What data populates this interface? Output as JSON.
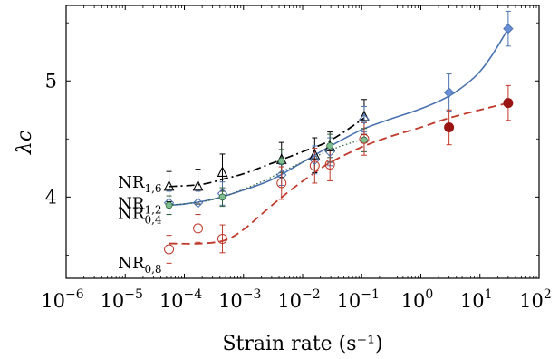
{
  "chart_data": {
    "type": "scatter",
    "xscale": "log",
    "xlim": [
      1e-06,
      100
    ],
    "ylim": [
      3.3,
      5.65
    ],
    "xlabel": "Strain rate (s⁻¹)",
    "ylabel": "λc",
    "x_ticks": [
      {
        "base": "10",
        "exp": "−6",
        "value": 1e-06
      },
      {
        "base": "10",
        "exp": "−5",
        "value": 1e-05
      },
      {
        "base": "10",
        "exp": "−4",
        "value": 0.0001
      },
      {
        "base": "10",
        "exp": "−3",
        "value": 0.001
      },
      {
        "base": "10",
        "exp": "−2",
        "value": 0.01
      },
      {
        "base": "10",
        "exp": "−1",
        "value": 0.1
      },
      {
        "base": "10",
        "exp": "0",
        "value": 1
      },
      {
        "base": "10",
        "exp": "1",
        "value": 10
      },
      {
        "base": "10",
        "exp": "2",
        "value": 100
      }
    ],
    "y_ticks": [
      {
        "label": "4",
        "value": 4
      },
      {
        "label": "5",
        "value": 5
      }
    ],
    "series": [
      {
        "name": "NR1,6",
        "label_main": "NR",
        "label_sub": "1,6",
        "color": "#000000",
        "marker": "open-triangle",
        "line_style": "dashdot",
        "points": [
          {
            "x": 5.5e-05,
            "y": 4.09,
            "err": 0.13
          },
          {
            "x": 0.00017,
            "y": 4.09,
            "err": 0.15
          },
          {
            "x": 0.00044,
            "y": 4.21,
            "err": 0.16
          },
          {
            "x": 0.0044,
            "y": 4.32,
            "err": 0.15
          },
          {
            "x": 0.016,
            "y": 4.36,
            "err": 0.15
          },
          {
            "x": 0.029,
            "y": 4.43,
            "err": 0.13
          },
          {
            "x": 0.11,
            "y": 4.69,
            "err": 0.15
          }
        ],
        "fit": [
          {
            "x": 5.5e-05,
            "y": 4.09
          },
          {
            "x": 0.0002,
            "y": 4.11
          },
          {
            "x": 0.0005,
            "y": 4.16
          },
          {
            "x": 0.001,
            "y": 4.2
          },
          {
            "x": 0.003,
            "y": 4.29
          },
          {
            "x": 0.01,
            "y": 4.39
          },
          {
            "x": 0.03,
            "y": 4.49
          },
          {
            "x": 0.11,
            "y": 4.68
          }
        ]
      },
      {
        "name": "NR1,2",
        "label_main": "NR",
        "label_sub": "1,2",
        "color": "#4a72b0",
        "fill": "#6b8fd6",
        "marker": "diamond",
        "line_style": "solid",
        "points": [
          {
            "x": 5.5e-05,
            "y": 3.95,
            "err": 0.1
          },
          {
            "x": 0.00017,
            "y": 3.95,
            "err": 0.1
          },
          {
            "x": 0.00044,
            "y": 4.03,
            "err": 0.1
          },
          {
            "x": 0.0044,
            "y": 4.19,
            "err": 0.09
          },
          {
            "x": 0.016,
            "y": 4.32,
            "err": 0.12
          },
          {
            "x": 0.029,
            "y": 4.39,
            "err": 0.12
          },
          {
            "x": 0.11,
            "y": 4.67,
            "err": 0.11
          },
          {
            "x": 3,
            "y": 4.9,
            "err": 0.16
          },
          {
            "x": 30,
            "y": 5.45,
            "err": 0.15
          }
        ],
        "fit": [
          {
            "x": 5.5e-05,
            "y": 3.93
          },
          {
            "x": 0.0001,
            "y": 3.94
          },
          {
            "x": 0.0003,
            "y": 3.98
          },
          {
            "x": 0.001,
            "y": 4.06
          },
          {
            "x": 0.003,
            "y": 4.15
          },
          {
            "x": 0.01,
            "y": 4.3
          },
          {
            "x": 0.03,
            "y": 4.44
          },
          {
            "x": 0.1,
            "y": 4.58
          },
          {
            "x": 0.3,
            "y": 4.67
          },
          {
            "x": 1,
            "y": 4.76
          },
          {
            "x": 3,
            "y": 4.87
          },
          {
            "x": 8,
            "y": 5.03
          },
          {
            "x": 15,
            "y": 5.2
          },
          {
            "x": 30,
            "y": 5.45
          }
        ]
      },
      {
        "name": "NR0,4",
        "label_main": "NR",
        "label_sub": "0,4",
        "color": "#2e5f3e",
        "fill": "#7fbf8f",
        "marker": "filled-circle",
        "line_style": "dotted",
        "points": [
          {
            "x": 5.5e-05,
            "y": 3.93,
            "err": 0.08
          },
          {
            "x": 0.00044,
            "y": 4.0,
            "err": 0.08
          },
          {
            "x": 0.0044,
            "y": 4.31,
            "err": 0.1
          },
          {
            "x": 0.029,
            "y": 4.44,
            "err": 0.1
          },
          {
            "x": 0.11,
            "y": 4.49,
            "err": 0.1
          }
        ],
        "fit": [
          {
            "x": 5.5e-05,
            "y": 3.93
          },
          {
            "x": 0.0002,
            "y": 3.96
          },
          {
            "x": 0.0005,
            "y": 4.01
          },
          {
            "x": 0.002,
            "y": 4.13
          },
          {
            "x": 0.005,
            "y": 4.23
          },
          {
            "x": 0.015,
            "y": 4.34
          },
          {
            "x": 0.04,
            "y": 4.43
          },
          {
            "x": 0.11,
            "y": 4.5
          }
        ]
      },
      {
        "name": "NR0,8",
        "label_main": "NR",
        "label_sub": "0,8",
        "color": "#c0392b",
        "fill": "#9b1414",
        "marker": "open-circle",
        "line_style": "dashed",
        "points": [
          {
            "x": 5.5e-05,
            "y": 3.55,
            "err": 0.12
          },
          {
            "x": 0.00017,
            "y": 3.73,
            "err": 0.12
          },
          {
            "x": 0.00044,
            "y": 3.64,
            "err": 0.12
          },
          {
            "x": 0.0044,
            "y": 4.12,
            "err": 0.14
          },
          {
            "x": 0.016,
            "y": 4.27,
            "err": 0.15
          },
          {
            "x": 0.029,
            "y": 4.28,
            "err": 0.14
          },
          {
            "x": 0.11,
            "y": 4.5,
            "err": 0.14
          },
          {
            "x": 3,
            "y": 4.6,
            "err": 0.15,
            "filled": true
          },
          {
            "x": 30,
            "y": 4.81,
            "err": 0.15,
            "filled": true
          }
        ],
        "fit": [
          {
            "x": 5.5e-05,
            "y": 3.6
          },
          {
            "x": 0.0002,
            "y": 3.6
          },
          {
            "x": 0.0005,
            "y": 3.63
          },
          {
            "x": 0.001,
            "y": 3.72
          },
          {
            "x": 0.002,
            "y": 3.85
          },
          {
            "x": 0.004,
            "y": 3.98
          },
          {
            "x": 0.008,
            "y": 4.1
          },
          {
            "x": 0.015,
            "y": 4.2
          },
          {
            "x": 0.03,
            "y": 4.3
          },
          {
            "x": 0.1,
            "y": 4.43
          },
          {
            "x": 0.3,
            "y": 4.52
          },
          {
            "x": 1,
            "y": 4.6
          },
          {
            "x": 3,
            "y": 4.68
          },
          {
            "x": 10,
            "y": 4.75
          },
          {
            "x": 30,
            "y": 4.81
          }
        ]
      }
    ]
  }
}
